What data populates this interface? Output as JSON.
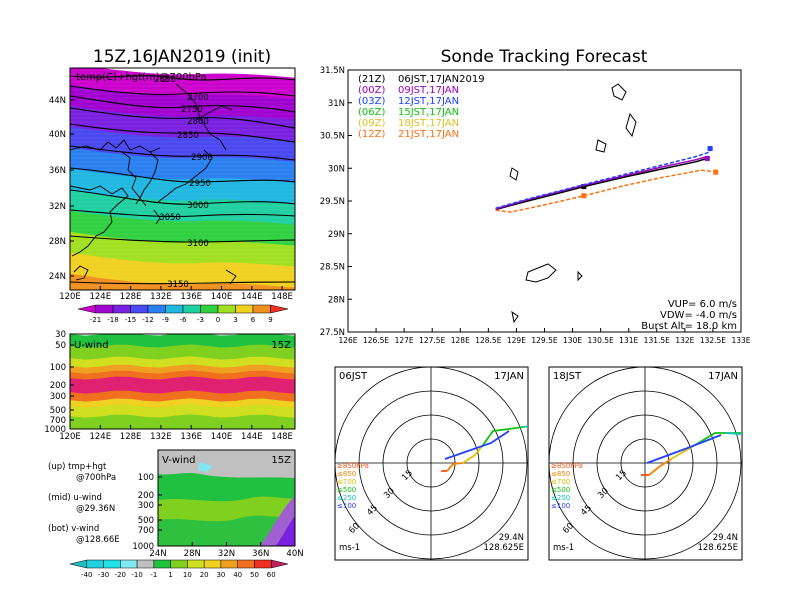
{
  "left_panel": {
    "title": "15Z,16JAN2019 (init)",
    "map_label": "temp(C)+hgt(m)@700hPa",
    "height_contours": [
      "2650",
      "2700",
      "2750",
      "2800",
      "2850",
      "2900",
      "2950",
      "3000",
      "3050",
      "3100",
      "3150"
    ],
    "lat_ticks": [
      "44N",
      "40N",
      "36N",
      "32N",
      "28N",
      "24N"
    ],
    "lon_ticks": [
      "120E",
      "124E",
      "128E",
      "132E",
      "136E",
      "140E",
      "144E",
      "148E"
    ],
    "temp_colorbar": [
      "-21",
      "-18",
      "-15",
      "-12",
      "-9",
      "-6",
      "-3",
      "0",
      "3",
      "6",
      "9"
    ],
    "temp_colors": [
      "#cc00cc",
      "#a000d0",
      "#7a20e0",
      "#4a48f0",
      "#2a80f0",
      "#20b8e0",
      "#20d0a0",
      "#30d040",
      "#a0e020",
      "#f0d020",
      "#f09020",
      "#f03020"
    ]
  },
  "uwind_panel": {
    "label": "U-wind",
    "time": "15Z",
    "p_ticks": [
      "30",
      "50",
      "100",
      "200",
      "300",
      "500",
      "700",
      "1000"
    ],
    "lon_ticks": [
      "120E",
      "124E",
      "128E",
      "132E",
      "136E",
      "140E",
      "144E",
      "148E"
    ]
  },
  "vwind_panel": {
    "label": "V-wind",
    "time": "15Z",
    "p_ticks": [
      "100",
      "200",
      "300",
      "500",
      "700",
      "1000"
    ],
    "lat_ticks": [
      "24N",
      "28N",
      "32N",
      "36N",
      "40N"
    ],
    "wind_colorbar": [
      "-40",
      "-30",
      "-20",
      "-10",
      "-1",
      "1",
      "10",
      "20",
      "30",
      "40",
      "50",
      "60"
    ],
    "wind_colors": [
      "#20c0c0",
      "#20d0e0",
      "#20e0e8",
      "#80e8f0",
      "#c0c0c0",
      "#20c040",
      "#80d020",
      "#d0e020",
      "#f0d020",
      "#f0a020",
      "#f07020",
      "#f03020",
      "#c02060"
    ]
  },
  "notes": {
    "up_a": "(up) tmp+hgt",
    "up_b": "@700hPa",
    "mid_a": "(mid) u-wind",
    "mid_b": "@29.36N",
    "bot_a": "(bot) v-wind",
    "bot_b": "@128.66E"
  },
  "tracking": {
    "title": "Sonde Tracking Forecast",
    "lat_ticks": [
      "31.5N",
      "31N",
      "30.5N",
      "30N",
      "29.5N",
      "29N",
      "28.5N",
      "28N",
      "27.5N"
    ],
    "lon_ticks": [
      "126E",
      "126.5E",
      "127E",
      "127.5E",
      "128E",
      "128.5E",
      "129E",
      "129.5E",
      "130E",
      "130.5E",
      "131E",
      "131.5E",
      "132E",
      "132.5E",
      "133E"
    ],
    "legend": [
      {
        "tag": "(21Z)",
        "text": "06JST,17JAN2019",
        "color": "#000000"
      },
      {
        "tag": "(00Z)",
        "text": "09JST,17JAN",
        "color": "#a000c0"
      },
      {
        "tag": "(03Z)",
        "text": "12JST,17JAN",
        "color": "#2040ff"
      },
      {
        "tag": "(06Z)",
        "text": "15JST,17JAN",
        "color": "#10c010"
      },
      {
        "tag": "(09Z)",
        "text": "18JST,17JAN",
        "color": "#e0c020"
      },
      {
        "tag": "(12Z)",
        "text": "21JST,17JAN",
        "color": "#ff7010"
      }
    ],
    "vup": "VUP=  6.0  m/s",
    "vdw": "VDW= -4.0  m/s",
    "burst": "Burst Alt=  18.0  km"
  },
  "chart_data": {
    "type": "line",
    "title": "Sonde Tracking Forecast",
    "xlim": [
      126,
      133
    ],
    "ylim": [
      27.5,
      31.5
    ],
    "series": [
      {
        "name": "(21Z) 06JST,17JAN2019",
        "color": "#000000",
        "x": [
          128.63,
          129.2,
          129.8,
          130.2,
          130.9,
          131.6,
          132.2,
          132.4
        ],
        "y": [
          29.37,
          29.5,
          29.63,
          29.72,
          29.86,
          29.99,
          30.1,
          30.15
        ],
        "marker": [
          130.2,
          29.72
        ]
      },
      {
        "name": "(00Z) 09JST,17JAN",
        "color": "#a000c0",
        "x": [
          128.63,
          129.2,
          129.8,
          130.2,
          130.9,
          131.6,
          132.2,
          132.4
        ],
        "y": [
          29.38,
          29.52,
          29.65,
          29.74,
          29.88,
          30.02,
          30.13,
          30.18
        ],
        "marker": [
          132.4,
          30.15
        ]
      },
      {
        "name": "(03Z) 12JST,17JAN",
        "color": "#2040ff",
        "x": [
          128.63,
          129.2,
          129.8,
          130.2,
          130.9,
          131.6,
          132.2,
          132.45
        ],
        "y": [
          29.39,
          29.53,
          29.66,
          29.75,
          29.9,
          30.05,
          30.18,
          30.25
        ],
        "marker": [
          132.45,
          30.3
        ]
      },
      {
        "name": "(12Z) 21JST,17JAN",
        "color": "#ff7010",
        "x": [
          128.63,
          128.9,
          129.5,
          130.2,
          130.9,
          131.6,
          132.3,
          132.5
        ],
        "y": [
          29.36,
          29.33,
          29.44,
          29.58,
          29.73,
          29.86,
          29.97,
          29.95
        ],
        "marker": [
          132.55,
          29.94
        ]
      }
    ]
  },
  "hodo_left": {
    "time": "06JST",
    "date": "17JAN",
    "lat": "29.4N",
    "lon": "128.625E",
    "units": "ms-1",
    "rings": [
      "15",
      "30",
      "45",
      "60"
    ],
    "levels": [
      {
        "t": "≥850hPa",
        "c": "#ff5010"
      },
      {
        "t": "≤850",
        "c": "#ff8000"
      },
      {
        "t": "≤700",
        "c": "#e0c000"
      },
      {
        "t": "≤500",
        "c": "#10c010"
      },
      {
        "t": "≤250",
        "c": "#10c0c0"
      },
      {
        "t": "≤100",
        "c": "#2040ff"
      }
    ]
  },
  "hodo_right": {
    "time": "18JST",
    "date": "17JAN",
    "lat": "29.4N",
    "lon": "128.625E",
    "units": "ms-1",
    "rings": [
      "15",
      "30",
      "45",
      "60"
    ]
  }
}
